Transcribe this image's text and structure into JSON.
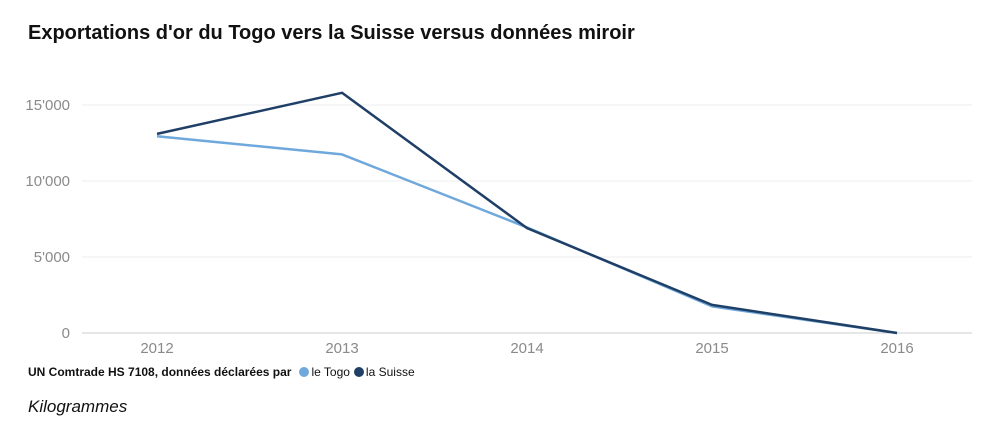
{
  "chart_data": {
    "type": "line",
    "title": "Exportations d'or du Togo vers la Suisse versus données miroir",
    "categories": [
      "2012",
      "2013",
      "2014",
      "2015",
      "2016"
    ],
    "series": [
      {
        "name": "le Togo",
        "values": [
          12950,
          11750,
          6950,
          1750,
          0
        ],
        "color": "#6fa8dc"
      },
      {
        "name": "la Suisse",
        "values": [
          13100,
          15800,
          6900,
          1850,
          0
        ],
        "color": "#1f3f66"
      }
    ],
    "ylim": [
      0,
      15000
    ],
    "yticks": [
      {
        "value": 0,
        "label": "0"
      },
      {
        "value": 5000,
        "label": "5'000"
      },
      {
        "value": 10000,
        "label": "10'000"
      },
      {
        "value": 15000,
        "label": "15'000"
      }
    ],
    "grid": true,
    "legend_prefix": "UN Comtrade HS 7108, données déclarées par",
    "unit_note": "Kilogrammes"
  }
}
